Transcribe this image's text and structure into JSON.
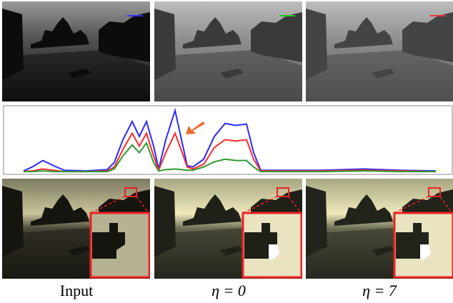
{
  "chart_data": {
    "type": "line",
    "x": [
      28,
      40,
      55,
      70,
      85,
      115,
      145,
      155,
      167,
      180,
      190,
      200,
      210,
      217,
      227,
      240,
      250,
      257,
      265,
      280,
      295,
      310,
      325,
      340,
      350,
      360,
      395,
      445,
      505,
      555,
      605
    ],
    "xlim": [
      0,
      628
    ],
    "ylim": [
      0,
      100
    ],
    "series": [
      {
        "color": "#2b2bff",
        "values": [
          2,
          8,
          18,
          10,
          3,
          2,
          4,
          15,
          50,
          78,
          55,
          78,
          40,
          5,
          50,
          95,
          45,
          10,
          8,
          20,
          55,
          75,
          72,
          74,
          30,
          3,
          3,
          3,
          5,
          3,
          2
        ]
      },
      {
        "color": "#ff2b2b",
        "values": [
          1,
          2,
          5,
          3,
          1,
          1,
          2,
          8,
          35,
          60,
          40,
          60,
          25,
          3,
          30,
          60,
          30,
          8,
          5,
          12,
          38,
          50,
          48,
          50,
          20,
          2,
          2,
          2,
          3,
          2,
          1
        ]
      },
      {
        "color": "#2e9a2e",
        "values": [
          1,
          1,
          2,
          1,
          1,
          1,
          1,
          5,
          25,
          42,
          30,
          45,
          15,
          2,
          4,
          5,
          4,
          3,
          3,
          8,
          16,
          20,
          18,
          18,
          8,
          1,
          1,
          1,
          2,
          1,
          1
        ]
      }
    ]
  },
  "captions": [
    "Input",
    "η = 0",
    "η = 7"
  ]
}
